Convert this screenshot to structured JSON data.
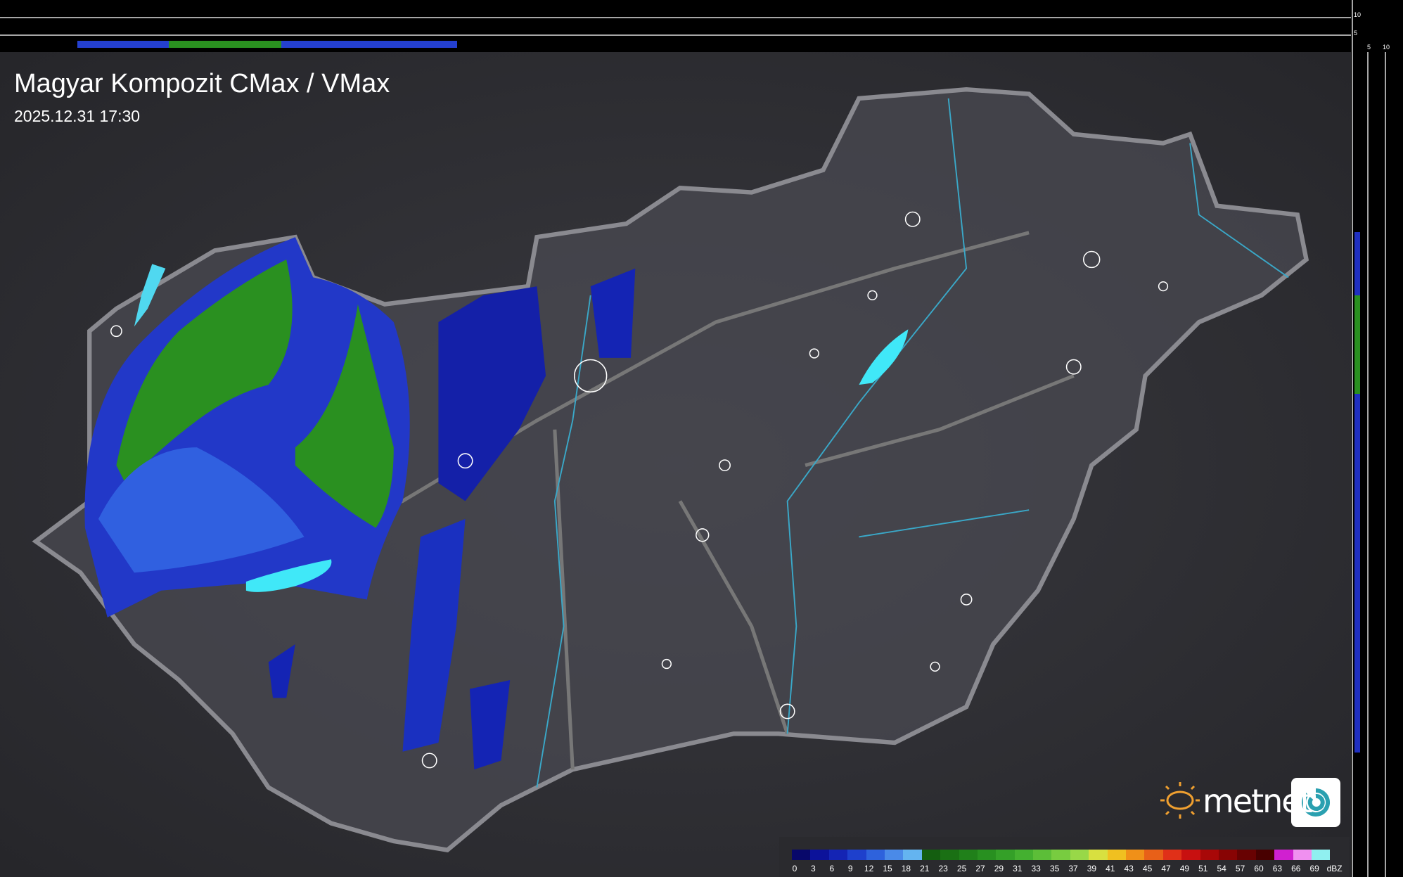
{
  "header": {
    "title": "Magyar Kompozit CMax / VMax",
    "timestamp": "2025.12.31 17:30"
  },
  "side_scale": {
    "top": [
      "10",
      "5"
    ],
    "right": [
      "5",
      "10"
    ]
  },
  "legend": {
    "ticks": [
      0,
      3,
      6,
      9,
      12,
      15,
      18,
      21,
      23,
      25,
      27,
      29,
      31,
      33,
      35,
      37,
      39,
      41,
      43,
      45,
      47,
      49,
      51,
      54,
      57,
      60,
      63,
      66,
      69
    ],
    "unit": "dBZ",
    "colors": [
      "#08086a",
      "#0c129a",
      "#1424b4",
      "#1e40cc",
      "#2e62dc",
      "#4a8ae8",
      "#64b4f0",
      "#145e10",
      "#1a7014",
      "#20801a",
      "#289020",
      "#34a028",
      "#44b030",
      "#5cbe38",
      "#78cc40",
      "#98d848",
      "#d8e040",
      "#f0c020",
      "#f09018",
      "#e86018",
      "#e03018",
      "#c81010",
      "#a80808",
      "#880404",
      "#680202",
      "#480000",
      "#d020d0",
      "#f090f0",
      "#90f0f0"
    ]
  },
  "logo": {
    "text": "metnet"
  }
}
